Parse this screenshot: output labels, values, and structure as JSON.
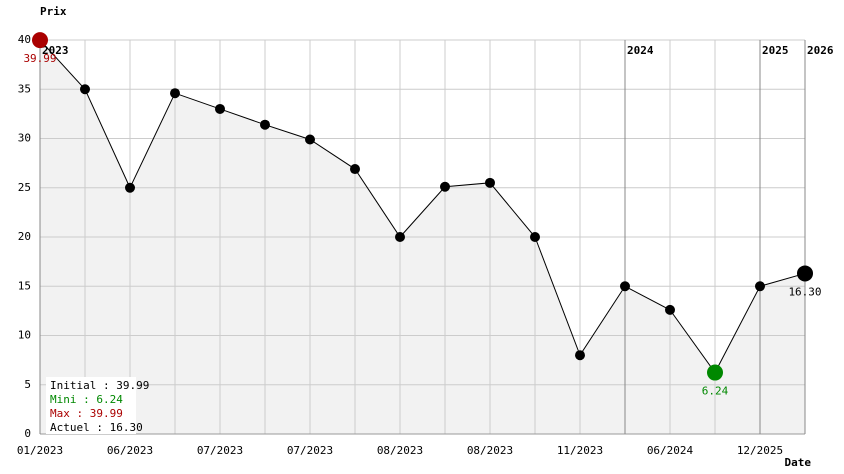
{
  "chart_data": {
    "type": "line",
    "y_label": "Prix",
    "x_label": "Date",
    "categories": [
      "01/2023",
      null,
      "06/2023",
      null,
      "07/2023",
      null,
      "07/2023",
      null,
      "08/2023",
      null,
      "08/2023",
      null,
      "11/2023",
      null,
      "06/2024",
      null,
      "12/2025",
      null
    ],
    "values": [
      39.99,
      35,
      25,
      34.6,
      33,
      31.4,
      29.9,
      26.9,
      20,
      25.1,
      25.5,
      20,
      8,
      15,
      12.6,
      6.24,
      15,
      16.3
    ],
    "value_labels": [
      "39.99",
      null,
      null,
      null,
      null,
      null,
      null,
      null,
      null,
      null,
      null,
      null,
      null,
      null,
      null,
      "6.24",
      null,
      "16.30"
    ],
    "color": "#000000",
    "max_color": "#aa0000",
    "min_color": "#008800",
    "area_color": "#f2f2f2",
    "ylim": [
      0,
      40
    ],
    "yticks": [
      0,
      5,
      10,
      15,
      20,
      25,
      30,
      35,
      40
    ],
    "grid": true,
    "year_markers": [
      {
        "index": 0,
        "label": "2023"
      },
      {
        "index": 13,
        "label": "2024"
      },
      {
        "index": 16,
        "label": "2025"
      },
      {
        "index": 17,
        "label": "2026"
      }
    ],
    "stats": [
      {
        "label": "Initial : 39.99",
        "color": "#000000"
      },
      {
        "label": "Mini : 6.24",
        "color": "#008800"
      },
      {
        "label": "Max : 39.99",
        "color": "#aa0000"
      },
      {
        "label": "Actuel : 16.30",
        "color": "#000000"
      }
    ]
  }
}
